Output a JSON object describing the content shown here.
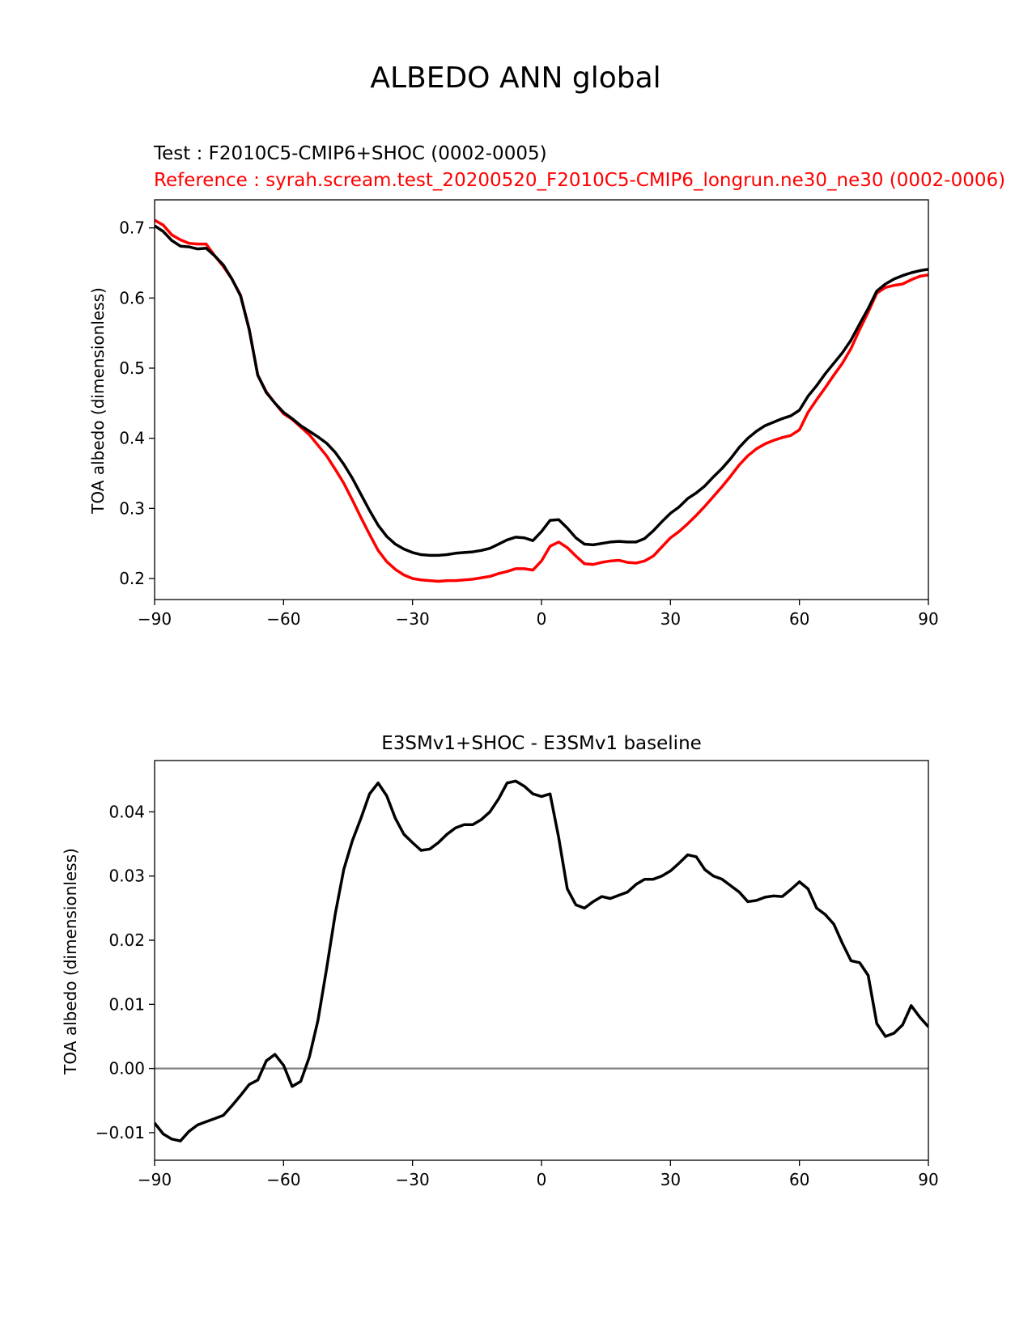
{
  "figure": {
    "title": "ALBEDO ANN global"
  },
  "chart_data": [
    {
      "type": "line",
      "subtitle_test": "Test : F2010C5-CMIP6+SHOC (0002-0005)",
      "subtitle_ref": "Reference : syrah.scream.test_20200520_F2010C5-CMIP6_longrun.ne30_ne30 (0002-0006)",
      "xlabel": "",
      "ylabel": "TOA albedo (dimensionless)",
      "xlim": [
        -90,
        90
      ],
      "ylim": [
        0.17,
        0.74
      ],
      "xticks": [
        -90,
        -60,
        -30,
        0,
        30,
        60,
        90
      ],
      "xtick_labels": [
        "−90",
        "−60",
        "−30",
        "0",
        "30",
        "60",
        "90"
      ],
      "yticks": [
        0.2,
        0.3,
        0.4,
        0.5,
        0.6,
        0.7
      ],
      "ytick_labels": [
        "0.2",
        "0.3",
        "0.4",
        "0.5",
        "0.6",
        "0.7"
      ],
      "series": [
        {
          "name": "Test",
          "color": "#000000",
          "x": [
            -90,
            -88,
            -86,
            -84,
            -82,
            -80,
            -78,
            -76,
            -74,
            -72,
            -70,
            -68,
            -66,
            -64,
            -62,
            -60,
            -58,
            -56,
            -54,
            -52,
            -50,
            -48,
            -46,
            -44,
            -42,
            -40,
            -38,
            -36,
            -34,
            -32,
            -30,
            -28,
            -26,
            -24,
            -22,
            -20,
            -18,
            -16,
            -14,
            -12,
            -10,
            -8,
            -6,
            -4,
            -2,
            0,
            2,
            4,
            6,
            8,
            10,
            12,
            14,
            16,
            18,
            20,
            22,
            24,
            26,
            28,
            30,
            32,
            34,
            36,
            38,
            40,
            42,
            44,
            46,
            48,
            50,
            52,
            54,
            56,
            58,
            60,
            62,
            64,
            66,
            68,
            70,
            72,
            74,
            76,
            78,
            80,
            82,
            84,
            86,
            88,
            90
          ],
          "values": [
            0.703,
            0.695,
            0.682,
            0.674,
            0.673,
            0.67,
            0.671,
            0.66,
            0.647,
            0.627,
            0.603,
            0.555,
            0.49,
            0.465,
            0.45,
            0.437,
            0.428,
            0.418,
            0.41,
            0.402,
            0.393,
            0.38,
            0.363,
            0.343,
            0.32,
            0.297,
            0.276,
            0.26,
            0.249,
            0.242,
            0.237,
            0.234,
            0.233,
            0.233,
            0.234,
            0.236,
            0.237,
            0.238,
            0.24,
            0.243,
            0.249,
            0.255,
            0.259,
            0.258,
            0.254,
            0.267,
            0.283,
            0.284,
            0.272,
            0.258,
            0.249,
            0.248,
            0.25,
            0.252,
            0.253,
            0.252,
            0.252,
            0.257,
            0.268,
            0.281,
            0.293,
            0.302,
            0.314,
            0.322,
            0.332,
            0.345,
            0.357,
            0.371,
            0.387,
            0.4,
            0.41,
            0.418,
            0.423,
            0.428,
            0.432,
            0.44,
            0.46,
            0.475,
            0.492,
            0.507,
            0.522,
            0.54,
            0.563,
            0.585,
            0.61,
            0.62,
            0.627,
            0.632,
            0.636,
            0.639,
            0.641
          ]
        },
        {
          "name": "Reference",
          "color": "#ff0000",
          "x": [
            -90,
            -88,
            -86,
            -84,
            -82,
            -80,
            -78,
            -76,
            -74,
            -72,
            -70,
            -68,
            -66,
            -64,
            -62,
            -60,
            -58,
            -56,
            -54,
            -52,
            -50,
            -48,
            -46,
            -44,
            -42,
            -40,
            -38,
            -36,
            -34,
            -32,
            -30,
            -28,
            -26,
            -24,
            -22,
            -20,
            -18,
            -16,
            -14,
            -12,
            -10,
            -8,
            -6,
            -4,
            -2,
            0,
            2,
            4,
            6,
            8,
            10,
            12,
            14,
            16,
            18,
            20,
            22,
            24,
            26,
            28,
            30,
            32,
            34,
            36,
            38,
            40,
            42,
            44,
            46,
            48,
            50,
            52,
            54,
            56,
            58,
            60,
            62,
            64,
            66,
            68,
            70,
            72,
            74,
            76,
            78,
            80,
            82,
            84,
            86,
            88,
            90
          ],
          "values": [
            0.711,
            0.704,
            0.69,
            0.683,
            0.678,
            0.677,
            0.677,
            0.66,
            0.645,
            0.627,
            0.604,
            0.556,
            0.49,
            0.466,
            0.45,
            0.435,
            0.427,
            0.416,
            0.405,
            0.39,
            0.375,
            0.356,
            0.336,
            0.312,
            0.287,
            0.263,
            0.24,
            0.224,
            0.213,
            0.205,
            0.2,
            0.198,
            0.197,
            0.196,
            0.197,
            0.197,
            0.198,
            0.199,
            0.201,
            0.203,
            0.207,
            0.21,
            0.214,
            0.214,
            0.212,
            0.225,
            0.246,
            0.252,
            0.244,
            0.232,
            0.221,
            0.22,
            0.223,
            0.225,
            0.226,
            0.223,
            0.222,
            0.225,
            0.232,
            0.245,
            0.258,
            0.267,
            0.278,
            0.29,
            0.303,
            0.317,
            0.331,
            0.346,
            0.362,
            0.375,
            0.385,
            0.392,
            0.397,
            0.401,
            0.404,
            0.412,
            0.437,
            0.455,
            0.472,
            0.49,
            0.507,
            0.528,
            0.555,
            0.58,
            0.607,
            0.615,
            0.618,
            0.62,
            0.626,
            0.631,
            0.633
          ]
        }
      ]
    },
    {
      "type": "line",
      "title": "E3SMv1+SHOC - E3SMv1 baseline",
      "xlabel": "",
      "ylabel": "TOA albedo (dimensionless)",
      "xlim": [
        -90,
        90
      ],
      "ylim": [
        -0.0143,
        0.048
      ],
      "xticks": [
        -90,
        -60,
        -30,
        0,
        30,
        60,
        90
      ],
      "xtick_labels": [
        "−90",
        "−60",
        "−30",
        "0",
        "30",
        "60",
        "90"
      ],
      "yticks": [
        -0.01,
        0.0,
        0.01,
        0.02,
        0.03,
        0.04
      ],
      "ytick_labels": [
        "−0.01",
        "0.00",
        "0.01",
        "0.02",
        "0.03",
        "0.04"
      ],
      "zero_line": true,
      "zero_line_color": "#808080",
      "series": [
        {
          "name": "difference",
          "color": "#000000",
          "x": [
            -90,
            -88,
            -86,
            -84,
            -82,
            -80,
            -78,
            -76,
            -74,
            -72,
            -70,
            -68,
            -66,
            -64,
            -62,
            -60,
            -58,
            -56,
            -54,
            -52,
            -50,
            -48,
            -46,
            -44,
            -42,
            -40,
            -38,
            -36,
            -34,
            -32,
            -30,
            -28,
            -26,
            -24,
            -22,
            -20,
            -18,
            -16,
            -14,
            -12,
            -10,
            -8,
            -6,
            -4,
            -2,
            0,
            2,
            4,
            6,
            8,
            10,
            12,
            14,
            16,
            18,
            20,
            22,
            24,
            26,
            28,
            30,
            32,
            34,
            36,
            38,
            40,
            42,
            44,
            46,
            48,
            50,
            52,
            54,
            56,
            58,
            60,
            62,
            64,
            66,
            68,
            70,
            72,
            74,
            76,
            78,
            80,
            82,
            84,
            86,
            88,
            90
          ],
          "values": [
            -0.0085,
            -0.0102,
            -0.011,
            -0.0113,
            -0.0098,
            -0.0088,
            -0.0083,
            -0.0078,
            -0.0073,
            -0.0058,
            -0.0042,
            -0.0025,
            -0.0018,
            0.0012,
            0.0022,
            0.0005,
            -0.0028,
            -0.002,
            0.0018,
            0.0075,
            0.0155,
            0.024,
            0.031,
            0.0355,
            0.039,
            0.0428,
            0.0445,
            0.0425,
            0.039,
            0.0365,
            0.0352,
            0.034,
            0.0342,
            0.0352,
            0.0365,
            0.0375,
            0.038,
            0.038,
            0.0388,
            0.04,
            0.042,
            0.0445,
            0.0448,
            0.044,
            0.0428,
            0.0424,
            0.0428,
            0.036,
            0.028,
            0.0255,
            0.025,
            0.026,
            0.0268,
            0.0265,
            0.027,
            0.0275,
            0.0287,
            0.0295,
            0.0295,
            0.03,
            0.0308,
            0.032,
            0.0333,
            0.033,
            0.031,
            0.03,
            0.0295,
            0.0285,
            0.0275,
            0.026,
            0.0262,
            0.0267,
            0.0269,
            0.0268,
            0.0279,
            0.0291,
            0.028,
            0.025,
            0.024,
            0.0225,
            0.0195,
            0.0168,
            0.0165,
            0.0145,
            0.007,
            0.005,
            0.0055,
            0.0068,
            0.0098,
            0.008,
            0.0065
          ]
        }
      ]
    }
  ]
}
